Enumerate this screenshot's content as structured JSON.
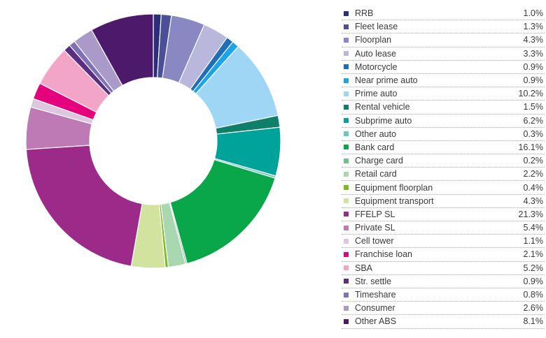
{
  "chart_data": {
    "type": "pie",
    "donut": true,
    "legend_position": "right",
    "categories": [
      "RRB",
      "Fleet lease",
      "Floorplan",
      "Auto lease",
      "Motorcycle",
      "Near prime auto",
      "Prime auto",
      "Rental vehicle",
      "Subprime auto",
      "Other auto",
      "Bank card",
      "Charge card",
      "Retail card",
      "Equipment floorplan",
      "Equipment transport",
      "FFELP SL",
      "Private SL",
      "Cell tower",
      "Franchise loan",
      "SBA",
      "Str. settle",
      "Timeshare",
      "Consumer",
      "Other ABS"
    ],
    "values": [
      1.0,
      1.3,
      4.3,
      3.3,
      0.9,
      0.9,
      10.2,
      1.5,
      6.2,
      0.3,
      16.1,
      0.2,
      2.2,
      0.4,
      4.3,
      21.3,
      5.4,
      1.1,
      2.1,
      5.2,
      0.9,
      0.8,
      2.6,
      8.1
    ],
    "value_labels": [
      "1.0%",
      "1.3%",
      "4.3%",
      "3.3%",
      "0.9%",
      "0.9%",
      "10.2%",
      "1.5%",
      "6.2%",
      "0.3%",
      "16.1%",
      "0.2%",
      "2.2%",
      "0.4%",
      "4.3%",
      "21.3%",
      "5.4%",
      "1.1%",
      "2.1%",
      "5.2%",
      "0.9%",
      "0.8%",
      "2.6%",
      "8.1%"
    ],
    "colors": [
      "#2b2f7a",
      "#4b4f9a",
      "#8a88c2",
      "#b9b7dc",
      "#1f6fb8",
      "#1aa6e6",
      "#9fd6f5",
      "#0f7f6a",
      "#00a39a",
      "#6fc8bd",
      "#0aa64a",
      "#6cc38a",
      "#a9d8b0",
      "#7dbb1e",
      "#d2e3a0",
      "#9b2a89",
      "#bd7ab5",
      "#dcc6e0",
      "#e5007e",
      "#f3a5c8",
      "#5b2d82",
      "#7f71b5",
      "#a99ac9",
      "#4d1a6b"
    ]
  }
}
